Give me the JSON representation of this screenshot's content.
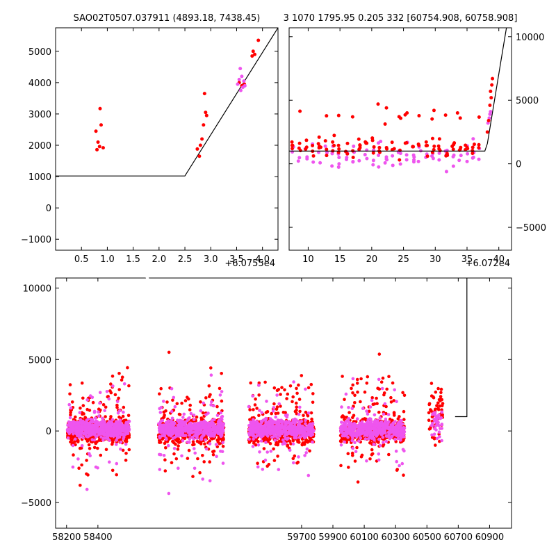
{
  "chart_data": [
    {
      "id": "ul",
      "type": "scatter",
      "title": "SAO02T0507.037911 (4893.18, 7438.45)",
      "x_offset_label": "+6.0755e4",
      "xlim": [
        0.0,
        4.3
      ],
      "ylim": [
        -1350,
        5750
      ],
      "xticks": [
        0.5,
        1.0,
        1.5,
        2.0,
        2.5,
        3.0,
        3.5,
        4.0
      ],
      "xtick_labels": [
        "0.5",
        "1.0",
        "1.5",
        "2.0",
        "2.5",
        "3.0",
        "3.5",
        "4.0"
      ],
      "yticks": [
        -1000,
        0,
        1000,
        2000,
        3000,
        4000,
        5000
      ],
      "ytick_labels": [
        "−1000",
        "0",
        "1000",
        "2000",
        "3000",
        "4000",
        "5000"
      ],
      "yaxis_side": "left",
      "series": [
        {
          "color": "#ff0000",
          "points": [
            [
              0.78,
              2450
            ],
            [
              0.8,
              1860
            ],
            [
              0.82,
              2100
            ],
            [
              0.85,
              1960
            ],
            [
              0.86,
              3170
            ],
            [
              0.88,
              2650
            ],
            [
              0.92,
              1920
            ],
            [
              2.74,
              1880
            ],
            [
              2.78,
              1650
            ],
            [
              2.8,
              2000
            ],
            [
              2.83,
              2200
            ],
            [
              2.86,
              2650
            ],
            [
              2.88,
              3650
            ],
            [
              2.9,
              3050
            ],
            [
              2.92,
              2950
            ],
            [
              3.55,
              4000
            ],
            [
              3.6,
              3900
            ],
            [
              3.65,
              3950
            ],
            [
              3.8,
              4850
            ],
            [
              3.82,
              5000
            ],
            [
              3.85,
              4900
            ],
            [
              3.92,
              5350
            ]
          ]
        },
        {
          "color": "#ee55ee",
          "points": [
            [
              3.52,
              3950
            ],
            [
              3.55,
              4100
            ],
            [
              3.57,
              4450
            ],
            [
              3.58,
              3750
            ],
            [
              3.6,
              4200
            ],
            [
              3.62,
              3850
            ],
            [
              3.64,
              4050
            ],
            [
              3.66,
              3900
            ]
          ]
        }
      ],
      "model_line": [
        [
          0.0,
          1020
        ],
        [
          2.5,
          1020
        ],
        [
          4.3,
          5750
        ]
      ]
    },
    {
      "id": "ur",
      "type": "scatter",
      "title": "3 1070 1795.95 0.205 332 [60754.908, 60758.908]",
      "x_offset_label": "+6.072e4",
      "xlim": [
        7.0,
        42.0
      ],
      "ylim": [
        -6800,
        10700
      ],
      "xticks": [
        10,
        15,
        20,
        25,
        30,
        35,
        40
      ],
      "xtick_labels": [
        "10",
        "15",
        "20",
        "25",
        "30",
        "35",
        "40"
      ],
      "yticks": [
        -5000,
        0,
        5000,
        10000
      ],
      "ytick_labels": [
        "−5000",
        "0",
        "5000",
        "10000"
      ],
      "yaxis_side": "right",
      "model_line": [
        [
          7.0,
          1000
        ],
        [
          37.8,
          1000
        ],
        [
          38.2,
          1600
        ],
        [
          40.3,
          8000
        ],
        [
          41.2,
          10700
        ]
      ]
    },
    {
      "id": "bottom",
      "type": "scatter",
      "xlim": [
        58130,
        61040
      ],
      "ylim": [
        -6800,
        10700
      ],
      "xticks": [
        58200,
        58400,
        59700,
        59900,
        60100,
        60300,
        60500,
        60700,
        60900
      ],
      "xtick_labels": [
        "58200",
        "58400",
        "59700",
        "59900",
        "60100",
        "60300",
        "60500",
        "60700",
        "60900"
      ],
      "yticks": [
        -5000,
        0,
        5000,
        10000
      ],
      "ytick_labels": [
        "−5000",
        "0",
        "5000",
        "10000"
      ],
      "yaxis_side": "left",
      "series": [
        {
          "name": "",
          "color": "#ff0000"
        },
        {
          "name": "",
          "color": "#ee55ee"
        }
      ],
      "model_line": [
        [
          60680,
          1000
        ],
        [
          60755,
          1000
        ],
        [
          60755,
          10700
        ]
      ]
    }
  ]
}
